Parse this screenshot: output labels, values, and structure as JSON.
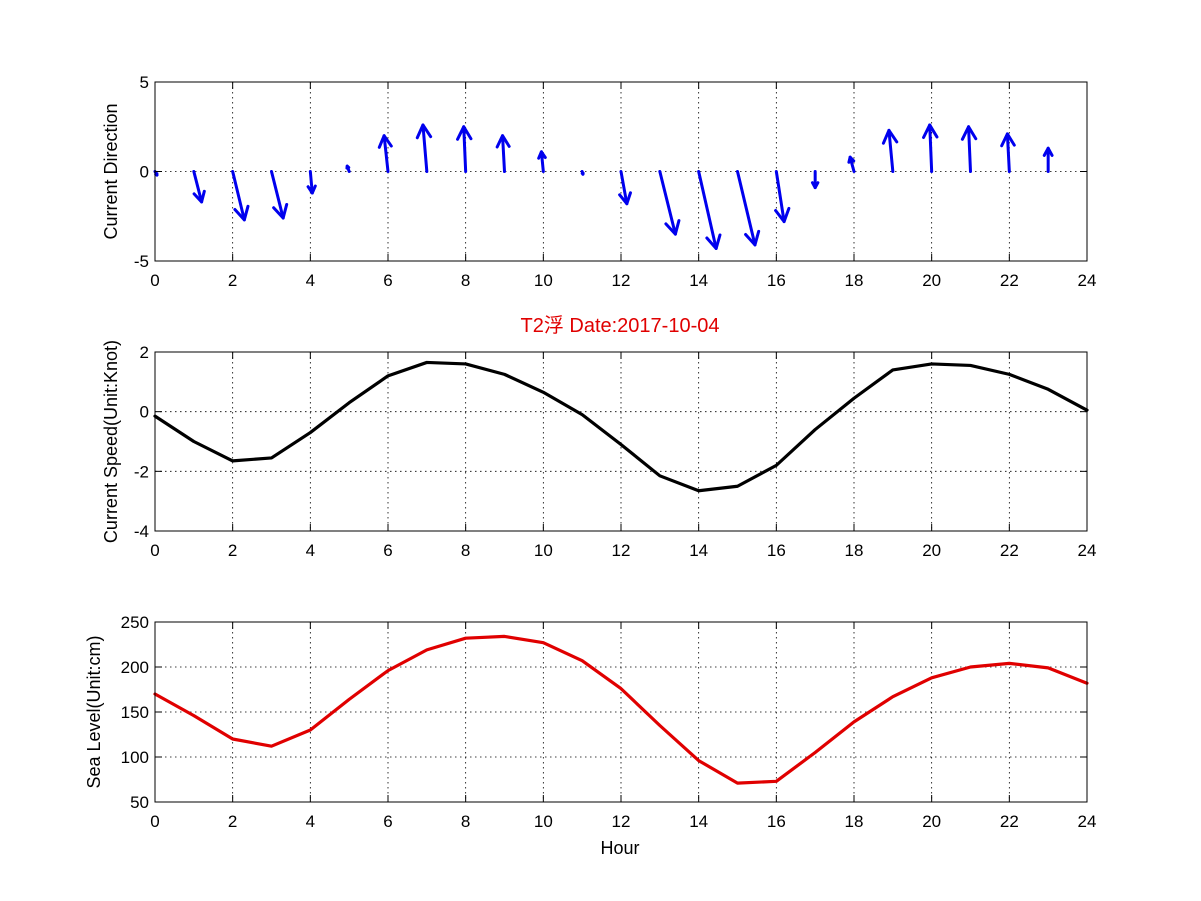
{
  "figure": {
    "title": "T2浮    Date:2017-10-04",
    "title_color": "#e00000",
    "xlabel": "Hour"
  },
  "chart_data": [
    {
      "type": "quiver",
      "ylabel": "Current Direction",
      "xlim": [
        0,
        24
      ],
      "ylim": [
        -5,
        5
      ],
      "xticks": [
        0,
        2,
        4,
        6,
        8,
        10,
        12,
        14,
        16,
        18,
        20,
        22,
        24
      ],
      "yticks": [
        -5,
        0,
        5
      ],
      "grid": true,
      "color": "#0000ee",
      "vectors": [
        {
          "x": 0,
          "u": 0.05,
          "v": -0.2
        },
        {
          "x": 1,
          "u": 0.2,
          "v": -1.7
        },
        {
          "x": 2,
          "u": 0.3,
          "v": -2.7
        },
        {
          "x": 3,
          "u": 0.3,
          "v": -2.6
        },
        {
          "x": 4,
          "u": 0.05,
          "v": -1.2
        },
        {
          "x": 5,
          "u": -0.05,
          "v": 0.3
        },
        {
          "x": 6,
          "u": -0.1,
          "v": 2.0
        },
        {
          "x": 7,
          "u": -0.1,
          "v": 2.6
        },
        {
          "x": 8,
          "u": -0.05,
          "v": 2.5
        },
        {
          "x": 9,
          "u": -0.05,
          "v": 2.0
        },
        {
          "x": 10,
          "u": -0.05,
          "v": 1.1
        },
        {
          "x": 11,
          "u": 0.02,
          "v": -0.15
        },
        {
          "x": 12,
          "u": 0.15,
          "v": -1.8
        },
        {
          "x": 13,
          "u": 0.4,
          "v": -3.5
        },
        {
          "x": 14,
          "u": 0.45,
          "v": -4.3
        },
        {
          "x": 15,
          "u": 0.45,
          "v": -4.1
        },
        {
          "x": 16,
          "u": 0.2,
          "v": -2.8
        },
        {
          "x": 17,
          "u": 0.0,
          "v": -0.9
        },
        {
          "x": 18,
          "u": -0.1,
          "v": 0.8
        },
        {
          "x": 19,
          "u": -0.1,
          "v": 2.3
        },
        {
          "x": 20,
          "u": -0.05,
          "v": 2.6
        },
        {
          "x": 21,
          "u": -0.05,
          "v": 2.5
        },
        {
          "x": 22,
          "u": -0.05,
          "v": 2.1
        },
        {
          "x": 23,
          "u": 0.0,
          "v": 1.3
        }
      ]
    },
    {
      "type": "line",
      "ylabel": "Current Speed(Unit:Knot)",
      "xlim": [
        0,
        24
      ],
      "ylim": [
        -4,
        2
      ],
      "xticks": [
        0,
        2,
        4,
        6,
        8,
        10,
        12,
        14,
        16,
        18,
        20,
        22,
        24
      ],
      "yticks": [
        -4,
        -2,
        0,
        2
      ],
      "grid": true,
      "color": "#000000",
      "series": [
        {
          "x": [
            0,
            1,
            2,
            3,
            4,
            5,
            6,
            7,
            8,
            9,
            10,
            11,
            12,
            13,
            14,
            15,
            16,
            17,
            18,
            19,
            20,
            21,
            22,
            23,
            24
          ],
          "values": [
            -0.15,
            -1.0,
            -1.65,
            -1.55,
            -0.7,
            0.3,
            1.2,
            1.65,
            1.6,
            1.25,
            0.65,
            -0.1,
            -1.1,
            -2.15,
            -2.65,
            -2.5,
            -1.8,
            -0.6,
            0.45,
            1.4,
            1.6,
            1.55,
            1.25,
            0.75,
            0.05
          ]
        }
      ]
    },
    {
      "type": "line",
      "ylabel": "Sea Level(Unit:cm)",
      "xlim": [
        0,
        24
      ],
      "ylim": [
        50,
        250
      ],
      "xticks": [
        0,
        2,
        4,
        6,
        8,
        10,
        12,
        14,
        16,
        18,
        20,
        22,
        24
      ],
      "yticks": [
        50,
        100,
        150,
        200,
        250
      ],
      "grid": true,
      "color": "#e00000",
      "series": [
        {
          "x": [
            0,
            1,
            2,
            3,
            4,
            5,
            6,
            7,
            8,
            9,
            10,
            11,
            12,
            13,
            14,
            15,
            16,
            17,
            18,
            19,
            20,
            21,
            22,
            23,
            24
          ],
          "values": [
            170,
            146,
            120,
            112,
            130,
            164,
            196,
            219,
            232,
            234,
            227,
            207,
            176,
            135,
            96,
            71,
            73,
            105,
            139,
            167,
            188,
            200,
            204,
            199,
            182
          ]
        }
      ]
    }
  ]
}
